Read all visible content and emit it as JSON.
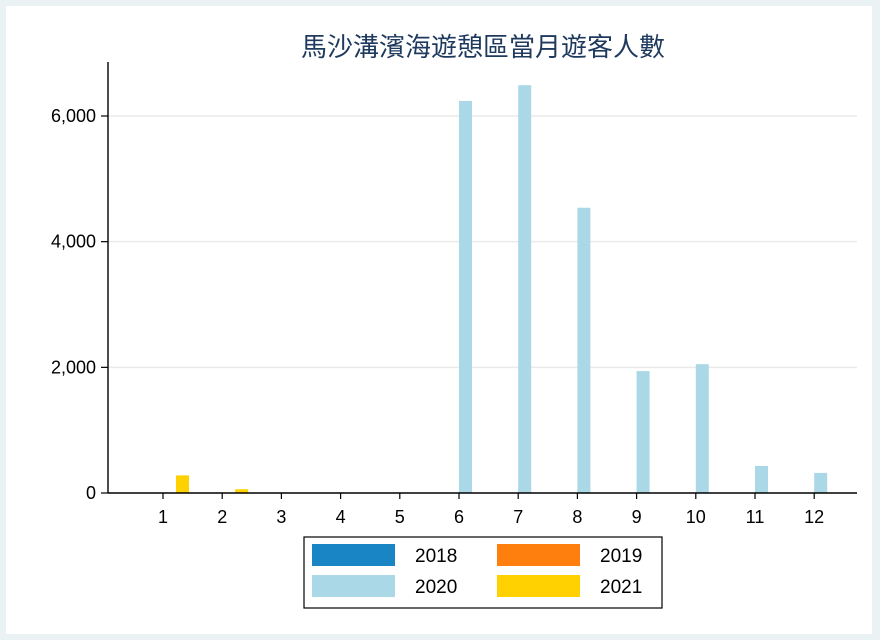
{
  "chart_data": {
    "type": "bar",
    "title": "馬沙溝濱海遊憩區當月遊客人數",
    "xlabel": "",
    "ylabel": "",
    "categories": [
      "1",
      "2",
      "3",
      "4",
      "5",
      "6",
      "7",
      "8",
      "9",
      "10",
      "11",
      "12"
    ],
    "ylim": [
      0,
      6800
    ],
    "yticks": [
      0,
      2000,
      4000,
      6000
    ],
    "ytick_labels": [
      "0",
      "2,000",
      "4,000",
      "6,000"
    ],
    "grid": true,
    "legend_position": "bottom",
    "series": [
      {
        "name": "2018",
        "color": "#1a85c4",
        "values": [
          0,
          0,
          0,
          0,
          0,
          0,
          0,
          0,
          0,
          0,
          0,
          0
        ]
      },
      {
        "name": "2019",
        "color": "#ff7f0e",
        "values": [
          0,
          0,
          0,
          0,
          0,
          0,
          0,
          0,
          0,
          0,
          0,
          0
        ]
      },
      {
        "name": "2020",
        "color": "#abd8e6",
        "values": [
          0,
          0,
          0,
          0,
          0,
          6240,
          6490,
          4540,
          1940,
          2050,
          430,
          320
        ]
      },
      {
        "name": "2021",
        "color": "#ffd100",
        "values": [
          280,
          60,
          0,
          0,
          0,
          0,
          0,
          0,
          0,
          0,
          0,
          0
        ]
      }
    ]
  }
}
